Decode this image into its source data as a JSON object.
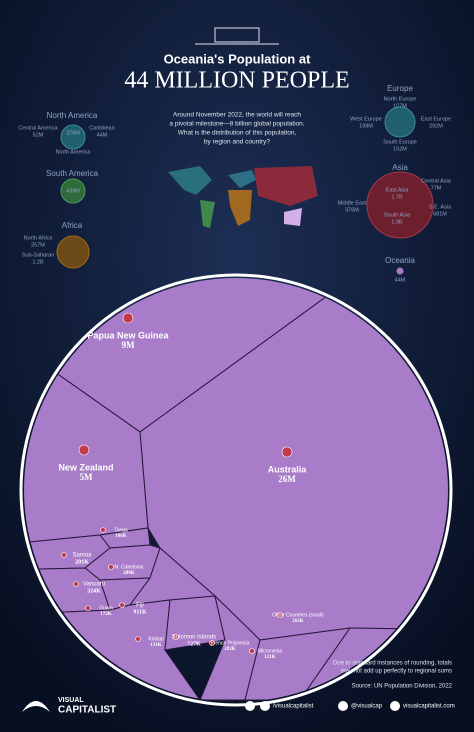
{
  "header": {
    "title": "Oceania's Population at",
    "headline": "44 MILLION PEOPLE",
    "intro": [
      "Around November 2022, the world will reach",
      "a pivotal milestone—8 billion global population.",
      "What is the distribution of this population,",
      "by region and country?"
    ]
  },
  "regions": [
    {
      "name": "North America",
      "items": [
        {
          "label": "Central America",
          "value": "52M"
        },
        {
          "label": "Caribbean",
          "value": "44M"
        },
        {
          "label": "North America",
          "value": "376M"
        }
      ]
    },
    {
      "name": "South America",
      "items": [
        {
          "label": "",
          "value": "439M"
        }
      ]
    },
    {
      "name": "Africa",
      "items": [
        {
          "label": "North Africa",
          "value": "257M"
        },
        {
          "label": "Sub-Saharan",
          "value": "1.2B"
        }
      ]
    },
    {
      "name": "Europe",
      "items": [
        {
          "label": "North Europe",
          "value": "107M"
        },
        {
          "label": "West Europe",
          "value": "198M"
        },
        {
          "label": "East Europe",
          "value": "292M"
        },
        {
          "label": "South Europe",
          "value": "152M"
        }
      ]
    },
    {
      "name": "Asia",
      "items": [
        {
          "label": "Central Asia",
          "value": "77M"
        },
        {
          "label": "East Asia",
          "value": "1.7B"
        },
        {
          "label": "S.E. Asia",
          "value": "681M"
        },
        {
          "label": "Middle East",
          "value": "376M"
        },
        {
          "label": "South Asia",
          "value": "1.9B"
        }
      ]
    },
    {
      "name": "Oceania",
      "items": [
        {
          "label": "",
          "value": "44M"
        }
      ]
    }
  ],
  "chart_data": {
    "type": "voronoi",
    "color": "#a97cc9",
    "categories": [
      "Papua New Guinea",
      "Australia",
      "New Zealand",
      "Tonga",
      "Samoa",
      "N. Caledonia",
      "Vanuatu",
      "Guam",
      "Fiji",
      "Kiribati",
      "Solomon Islands",
      "French Polynesia",
      "Micronesia",
      "Other Countries (small)"
    ],
    "values": [
      9000000,
      26000000,
      5000000,
      106000,
      201000,
      289000,
      324000,
      172000,
      911000,
      131000,
      727000,
      283000,
      121000,
      262000
    ],
    "value_labels": [
      "9M",
      "26M",
      "5M",
      "106K",
      "201K",
      "289K",
      "324K",
      "172K",
      "911K",
      "131K",
      "727K",
      "283K",
      "121K",
      "262K"
    ]
  },
  "footer": {
    "note": [
      "Due to standard instances of rounding, totals",
      "may not add up perfectly to regional sums"
    ],
    "source": "Source: UN Population Division, 2022",
    "brand": [
      "VISUAL",
      "CAPITALIST"
    ],
    "social": [
      "/visualcapitalist",
      "@visualcap",
      "visualcapitalist.com"
    ]
  }
}
